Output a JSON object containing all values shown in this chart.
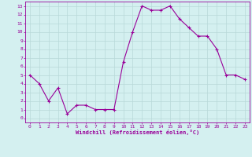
{
  "x": [
    0,
    1,
    2,
    3,
    4,
    5,
    6,
    7,
    8,
    9,
    10,
    11,
    12,
    13,
    14,
    15,
    16,
    17,
    18,
    19,
    20,
    21,
    22,
    23
  ],
  "y": [
    5,
    4,
    2,
    3.5,
    0.5,
    1.5,
    1.5,
    1,
    1,
    1,
    6.5,
    10,
    13,
    12.5,
    12.5,
    13,
    11.5,
    10.5,
    9.5,
    9.5,
    8,
    5,
    5,
    4.5
  ],
  "xlabel": "Windchill (Refroidissement éolien,°C)",
  "ylim": [
    0,
    13
  ],
  "xlim": [
    0,
    23
  ],
  "color": "#990099",
  "bg_color": "#d4f0f0",
  "grid_color": "#b8d8d8",
  "figsize": [
    3.2,
    2.0
  ],
  "dpi": 100,
  "xticks": [
    0,
    1,
    2,
    3,
    4,
    5,
    6,
    7,
    8,
    9,
    10,
    11,
    12,
    13,
    14,
    15,
    16,
    17,
    18,
    19,
    20,
    21,
    22,
    23
  ],
  "yticks": [
    0,
    1,
    2,
    3,
    4,
    5,
    6,
    7,
    8,
    9,
    10,
    11,
    12,
    13
  ]
}
